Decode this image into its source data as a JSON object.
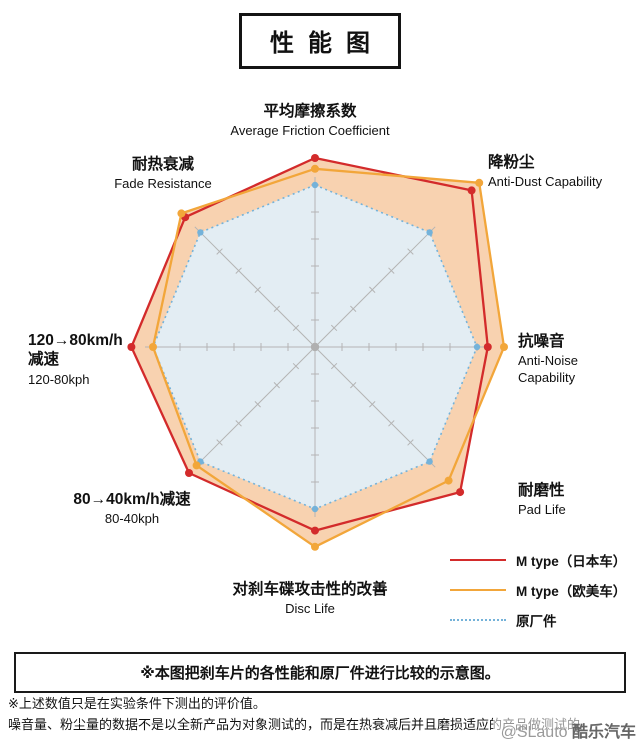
{
  "page": {
    "title": "性能图"
  },
  "axis_labels": {
    "friction": {
      "zh": "平均摩擦系数",
      "en": "Average Friction Coefficient"
    },
    "dust": {
      "zh": "降粉尘",
      "en": "Anti-Dust Capability"
    },
    "noise": {
      "zh": "抗噪音",
      "en1": "Anti-Noise",
      "en2": "Capability"
    },
    "pad": {
      "zh": "耐磨性",
      "en": "Pad Life"
    },
    "disc": {
      "zh": "对刹车碟攻击性的改善",
      "en": "Disc Life"
    },
    "dec80": {
      "zh": "80→40km/h减速",
      "en": "80-40kph"
    },
    "dec120": {
      "zh1": "120→80km/h",
      "zh2": "减速",
      "en": "120-80kph"
    },
    "fade": {
      "zh": "耐热衰减",
      "en": "Fade Resistance"
    }
  },
  "legend": [
    {
      "label": "M type（日本车）",
      "color": "#d32b2b",
      "style": "solid"
    },
    {
      "label": "M type（欧美车）",
      "color": "#f2a63a",
      "style": "solid"
    },
    {
      "label": "原厂件",
      "color": "#74b2d9",
      "style": "dotted"
    }
  ],
  "note_box": "※本图把刹车片的各性能和原厂件进行比较的示意图。",
  "footnotes": [
    "※上述数值只是在实验条件下测出的评价值。",
    "噪音量、粉尘量的数据不是以全新产品为对象测试的，而是在热衰减后并且磨损适应的产品做测试的。"
  ],
  "watermark": {
    "prefix": "@SLauto",
    "brand": "酷乐汽车"
  },
  "chart_data": {
    "type": "radar",
    "title": "性能图",
    "categories": [
      "平均摩擦系数 (Average Friction Coefficient)",
      "降粉尘 (Anti-Dust Capability)",
      "抗噪音 (Anti-Noise Capability)",
      "耐磨性 (Pad Life)",
      "对刹车碟攻击性的改善 (Disc Life)",
      "80→40km/h减速 (80-40kph)",
      "120→80km/h减速 (120-80kph)",
      "耐热衰减 (Fade Resistance)"
    ],
    "scale": {
      "min": 0,
      "max": 5,
      "note": "axis ticks are unlabeled; OEM baseline normalized to 3.0"
    },
    "legend_position": "bottom-right",
    "series": [
      {
        "name": "M type（日本车）",
        "color": "#d32b2b",
        "line": "solid",
        "fill": "#f8d2b0",
        "values": [
          3.5,
          4.1,
          3.2,
          3.8,
          3.4,
          3.3,
          3.4,
          3.4
        ]
      },
      {
        "name": "M type（欧美车）",
        "color": "#f2a63a",
        "line": "solid",
        "fill": "#f8d2b0",
        "values": [
          3.3,
          4.3,
          3.5,
          3.5,
          3.7,
          3.1,
          3.0,
          3.5
        ]
      },
      {
        "name": "原厂件",
        "color": "#74b2d9",
        "line": "dotted",
        "fill": "#e3edf3",
        "values": [
          3.0,
          3.0,
          3.0,
          3.0,
          3.0,
          3.0,
          3.0,
          3.0
        ]
      }
    ]
  }
}
